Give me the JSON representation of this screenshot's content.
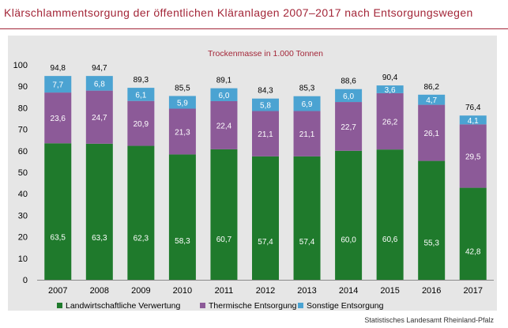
{
  "title": "Klärschlammentsorgung der öffentlichen Kläranlagen 2007–2017 nach Entsorgungswegen",
  "source": "Statistisches Landesamt Rheinland-Pfalz",
  "colors": {
    "title": "#a32638",
    "panel": "#e6e6e6",
    "Landwirtschaftliche Verwertung": "#1f7a2c",
    "Thermische Entsorgung": "#8c5a98",
    "Sonstige Entsorgung": "#4ba3d2"
  },
  "chart_data": {
    "type": "bar",
    "stacked": true,
    "title": "Trockenmasse in 1.000 Tonnen",
    "categories": [
      "2007",
      "2008",
      "2009",
      "2010",
      "2011",
      "2012",
      "2013",
      "2014",
      "2015",
      "2016",
      "2017"
    ],
    "series": [
      {
        "name": "Landwirtschaftliche Verwertung",
        "values": [
          63.5,
          63.3,
          62.3,
          58.3,
          60.7,
          57.4,
          57.4,
          60.0,
          60.6,
          55.3,
          42.8
        ]
      },
      {
        "name": "Thermische Entsorgung",
        "values": [
          23.6,
          24.7,
          20.9,
          21.3,
          22.4,
          21.1,
          21.1,
          22.7,
          26.2,
          26.1,
          29.5
        ]
      },
      {
        "name": "Sonstige Entsorgung",
        "values": [
          7.7,
          6.8,
          6.1,
          5.9,
          6.0,
          5.8,
          6.9,
          6.0,
          3.6,
          4.7,
          4.1
        ]
      }
    ],
    "totals": [
      94.8,
      94.7,
      89.3,
      85.5,
      89.1,
      84.3,
      85.3,
      88.6,
      90.4,
      86.2,
      76.4
    ],
    "ylim": [
      0,
      100
    ],
    "yticks": [
      0,
      10,
      20,
      30,
      40,
      50,
      60,
      70,
      80,
      90,
      100
    ],
    "grid": false,
    "legend": "bottom"
  }
}
